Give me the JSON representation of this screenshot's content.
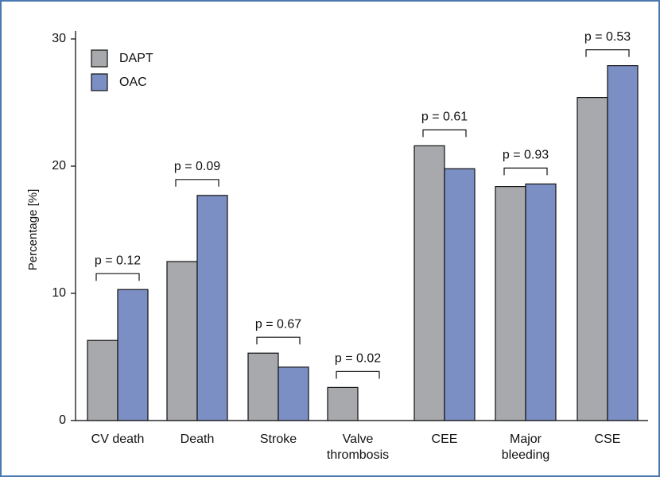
{
  "chart_data": {
    "type": "bar",
    "ylabel": "Percentage [%]",
    "categories": [
      "CV death",
      "Death",
      "Stroke",
      "Valve thrombosis",
      "CEE",
      "Major bleeding",
      "CSE"
    ],
    "series": [
      {
        "name": "DAPT",
        "color": "#a7a9ac",
        "values": [
          6.3,
          12.5,
          5.3,
          2.6,
          21.6,
          18.4,
          25.4
        ]
      },
      {
        "name": "OAC",
        "color": "#7b8fc4",
        "values": [
          10.3,
          17.7,
          4.2,
          0,
          19.8,
          18.6,
          27.9
        ]
      }
    ],
    "annotations": [
      "p = 0.12",
      "p = 0.09",
      "p = 0.67",
      "p = 0.02",
      "p = 0.61",
      "p = 0.93",
      "p = 0.53"
    ],
    "ylim": [
      0,
      30
    ],
    "yticks": [
      0,
      10,
      20,
      30
    ],
    "legend": "upper left"
  }
}
